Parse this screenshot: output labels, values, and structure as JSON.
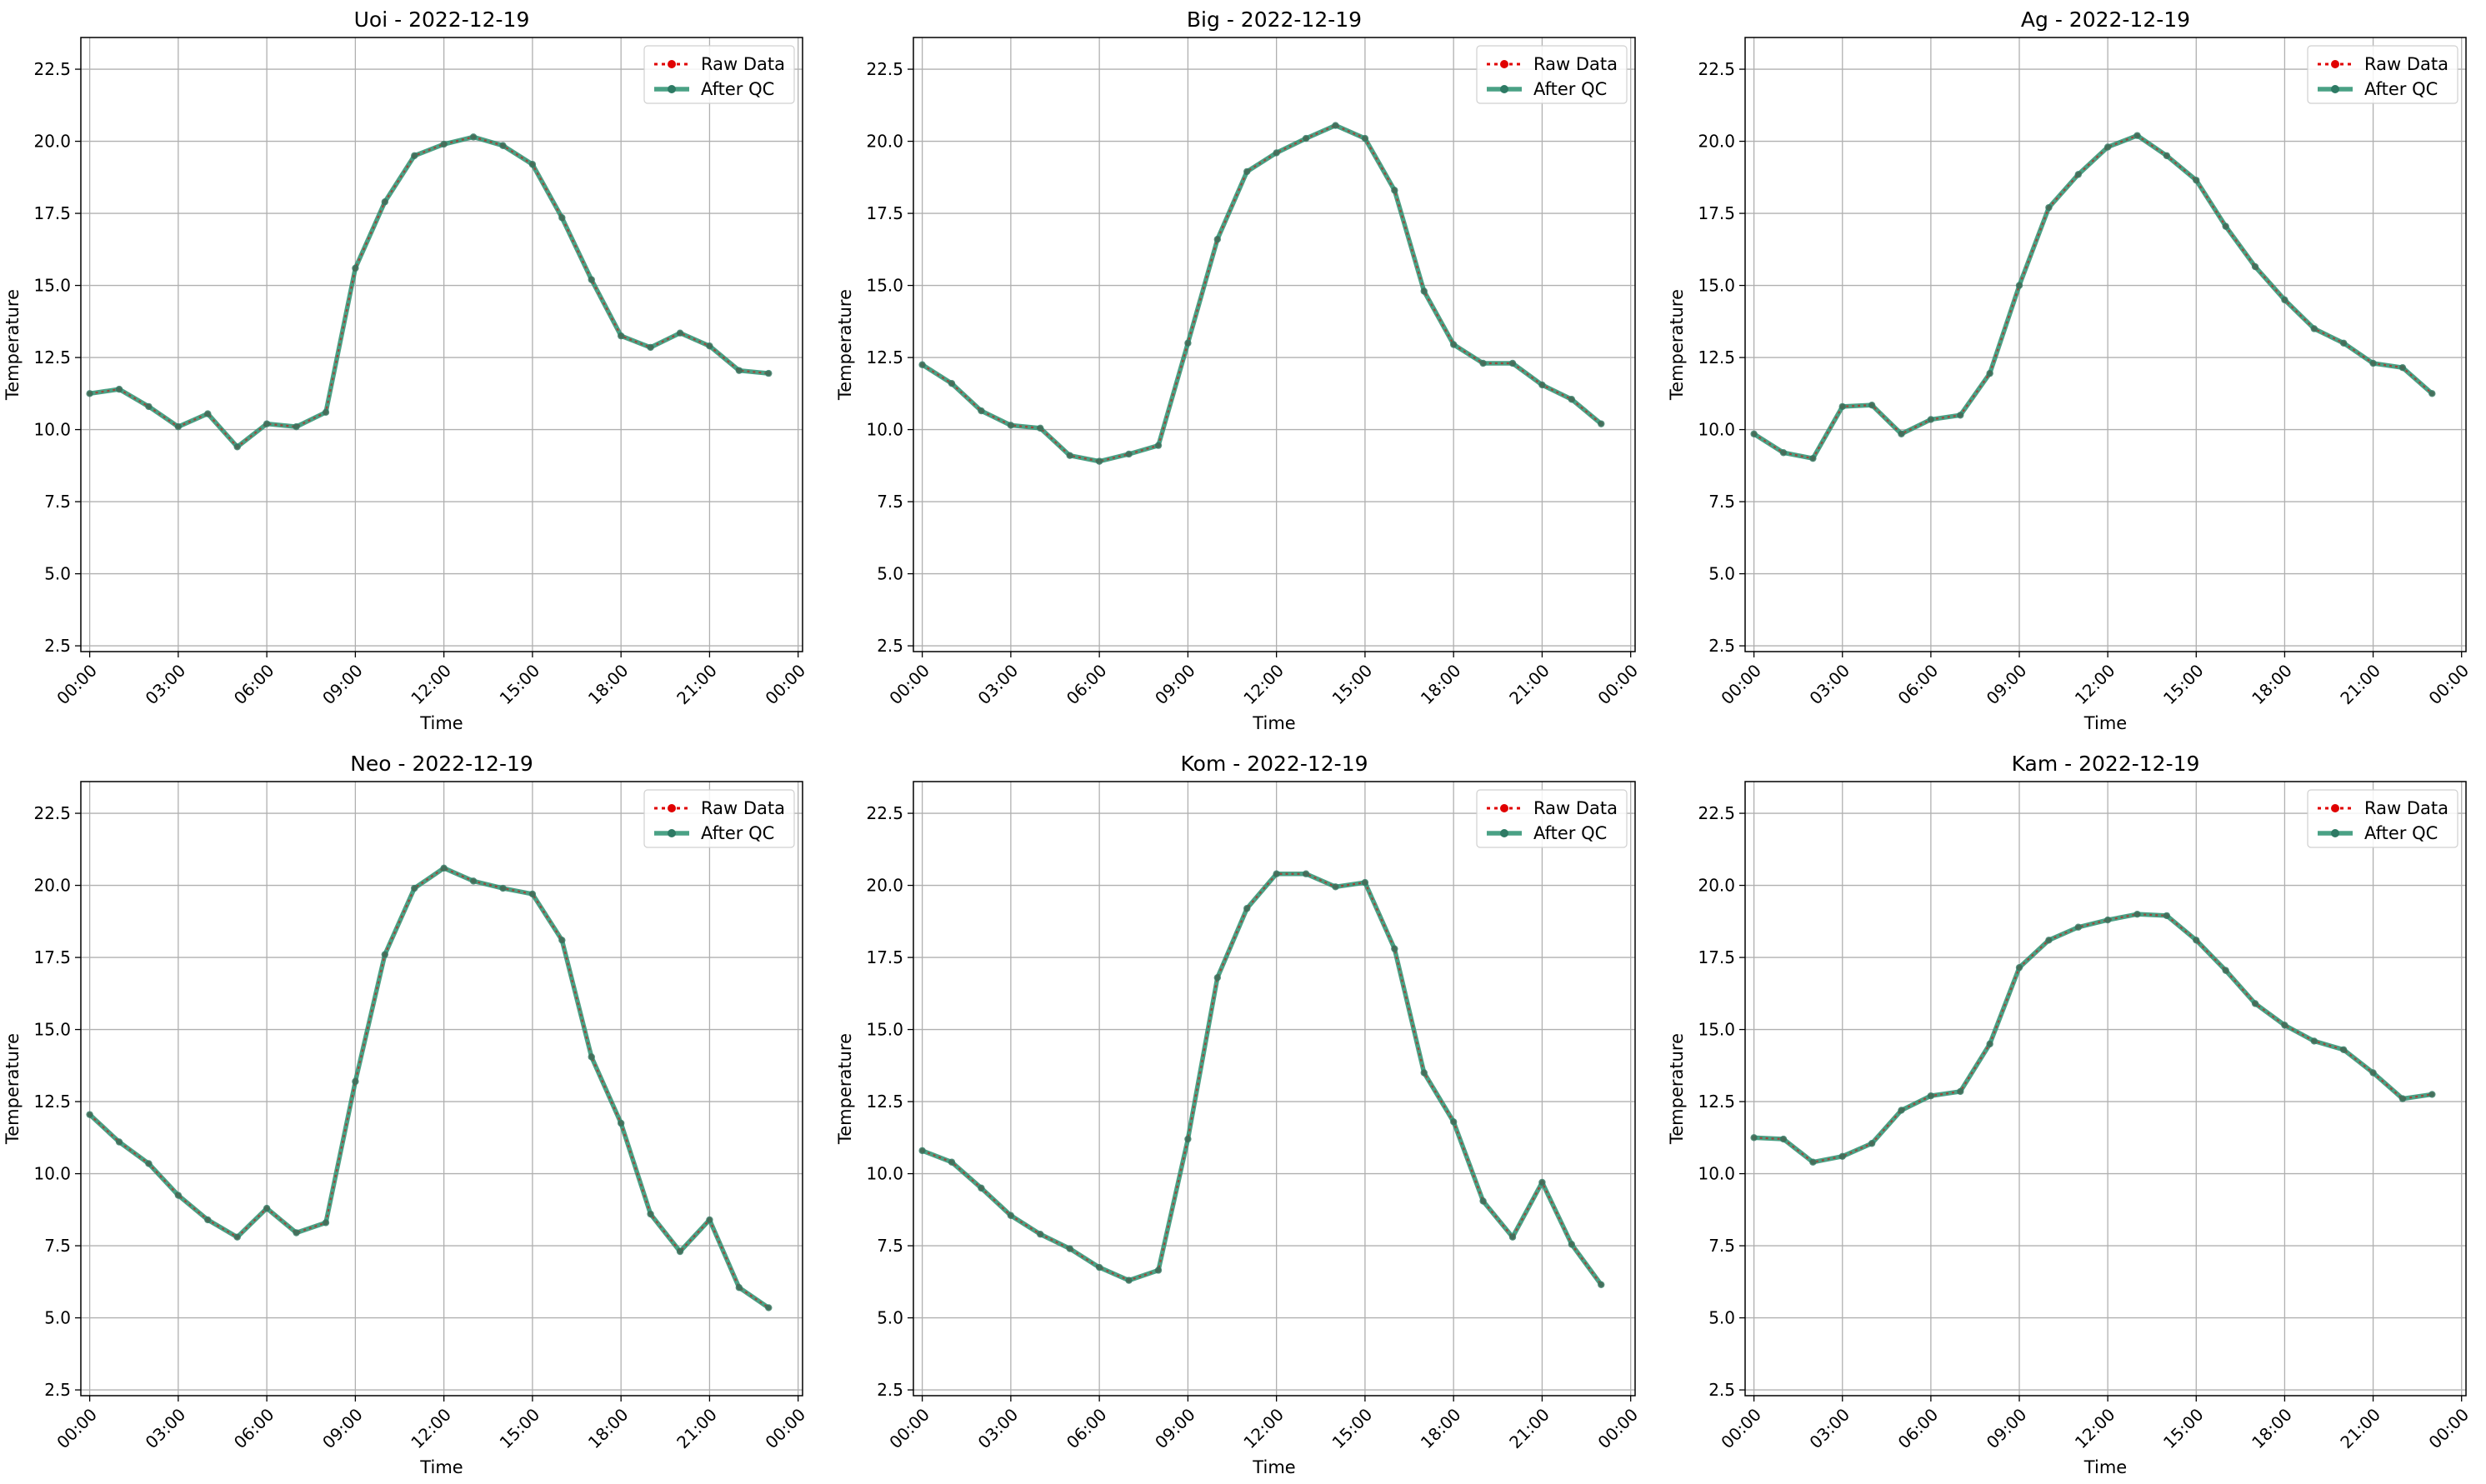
{
  "figure": {
    "x_tick_labels": [
      "00:00",
      "03:00",
      "06:00",
      "09:00",
      "12:00",
      "15:00",
      "18:00",
      "21:00",
      "00:00"
    ],
    "legend": {
      "raw_label": "Raw Data",
      "qc_label": "After QC"
    }
  },
  "colors": {
    "raw": "#e00000",
    "qc": "#2a9070",
    "qc_marker": "#2e7a64",
    "grid": "#b0b0b0"
  },
  "chart_data": [
    {
      "type": "line",
      "title": "Uoi - 2022-12-19",
      "xlabel": "Time",
      "ylabel": "Temperature",
      "xlim_hours": [
        -0.3,
        24.15
      ],
      "ylim": [
        2.3,
        23.6
      ],
      "yticks": [
        2.5,
        5.0,
        7.5,
        10.0,
        12.5,
        15.0,
        17.5,
        20.0,
        22.5
      ],
      "legend_position": "top-right",
      "grid": true,
      "x": [
        "00:00",
        "01:00",
        "02:00",
        "03:00",
        "04:00",
        "05:00",
        "06:00",
        "07:00",
        "08:00",
        "09:00",
        "10:00",
        "11:00",
        "12:00",
        "13:00",
        "14:00",
        "15:00",
        "16:00",
        "17:00",
        "18:00",
        "19:00",
        "20:00",
        "21:00",
        "22:00",
        "23:00"
      ],
      "series": [
        {
          "name": "Raw Data",
          "values": [
            11.25,
            11.4,
            10.8,
            10.1,
            10.55,
            9.4,
            10.2,
            10.1,
            10.6,
            15.6,
            17.9,
            19.5,
            19.9,
            20.15,
            19.85,
            19.2,
            17.35,
            15.2,
            13.25,
            12.85,
            13.35,
            12.9,
            12.05,
            11.95
          ]
        },
        {
          "name": "After QC",
          "values": [
            11.25,
            11.4,
            10.8,
            10.1,
            10.55,
            9.4,
            10.2,
            10.1,
            10.6,
            15.6,
            17.9,
            19.5,
            19.9,
            20.15,
            19.85,
            19.2,
            17.35,
            15.2,
            13.25,
            12.85,
            13.35,
            12.9,
            12.05,
            11.95
          ]
        }
      ]
    },
    {
      "type": "line",
      "title": "Big - 2022-12-19",
      "xlabel": "Time",
      "ylabel": "Temperature",
      "xlim_hours": [
        -0.3,
        24.15
      ],
      "ylim": [
        2.3,
        23.6
      ],
      "yticks": [
        2.5,
        5.0,
        7.5,
        10.0,
        12.5,
        15.0,
        17.5,
        20.0,
        22.5
      ],
      "legend_position": "top-right",
      "grid": true,
      "x": [
        "00:00",
        "01:00",
        "02:00",
        "03:00",
        "04:00",
        "05:00",
        "06:00",
        "07:00",
        "08:00",
        "09:00",
        "10:00",
        "11:00",
        "12:00",
        "13:00",
        "14:00",
        "15:00",
        "16:00",
        "17:00",
        "18:00",
        "19:00",
        "20:00",
        "21:00",
        "22:00",
        "23:00"
      ],
      "series": [
        {
          "name": "Raw Data",
          "values": [
            12.25,
            11.6,
            10.65,
            10.15,
            10.05,
            9.1,
            8.9,
            9.15,
            9.45,
            13.0,
            16.6,
            18.95,
            19.6,
            20.1,
            20.55,
            20.1,
            18.3,
            14.8,
            12.95,
            12.3,
            12.3,
            11.55,
            11.05,
            10.2
          ]
        },
        {
          "name": "After QC",
          "values": [
            12.25,
            11.6,
            10.65,
            10.15,
            10.05,
            9.1,
            8.9,
            9.15,
            9.45,
            13.0,
            16.6,
            18.95,
            19.6,
            20.1,
            20.55,
            20.1,
            18.3,
            14.8,
            12.95,
            12.3,
            12.3,
            11.55,
            11.05,
            10.2
          ]
        }
      ]
    },
    {
      "type": "line",
      "title": "Ag - 2022-12-19",
      "xlabel": "Time",
      "ylabel": "Temperature",
      "xlim_hours": [
        -0.3,
        24.15
      ],
      "ylim": [
        2.3,
        23.6
      ],
      "yticks": [
        2.5,
        5.0,
        7.5,
        10.0,
        12.5,
        15.0,
        17.5,
        20.0,
        22.5
      ],
      "legend_position": "top-right",
      "grid": true,
      "x": [
        "00:00",
        "01:00",
        "02:00",
        "03:00",
        "04:00",
        "05:00",
        "06:00",
        "07:00",
        "08:00",
        "09:00",
        "10:00",
        "11:00",
        "12:00",
        "13:00",
        "14:00",
        "15:00",
        "16:00",
        "17:00",
        "18:00",
        "19:00",
        "20:00",
        "21:00",
        "22:00",
        "23:00"
      ],
      "series": [
        {
          "name": "Raw Data",
          "values": [
            9.85,
            9.2,
            9.0,
            10.8,
            10.85,
            9.85,
            10.35,
            10.5,
            11.95,
            15.0,
            17.7,
            18.85,
            19.8,
            20.2,
            19.5,
            18.65,
            17.05,
            15.65,
            14.5,
            13.5,
            13.0,
            12.3,
            12.15,
            11.25
          ]
        },
        {
          "name": "After QC",
          "values": [
            9.85,
            9.2,
            9.0,
            10.8,
            10.85,
            9.85,
            10.35,
            10.5,
            11.95,
            15.0,
            17.7,
            18.85,
            19.8,
            20.2,
            19.5,
            18.65,
            17.05,
            15.65,
            14.5,
            13.5,
            13.0,
            12.3,
            12.15,
            11.25
          ]
        }
      ]
    },
    {
      "type": "line",
      "title": "Neo - 2022-12-19",
      "xlabel": "Time",
      "ylabel": "Temperature",
      "xlim_hours": [
        -0.3,
        24.15
      ],
      "ylim": [
        2.3,
        23.6
      ],
      "yticks": [
        2.5,
        5.0,
        7.5,
        10.0,
        12.5,
        15.0,
        17.5,
        20.0,
        22.5
      ],
      "legend_position": "top-right",
      "grid": true,
      "x": [
        "00:00",
        "01:00",
        "02:00",
        "03:00",
        "04:00",
        "05:00",
        "06:00",
        "07:00",
        "08:00",
        "09:00",
        "10:00",
        "11:00",
        "12:00",
        "13:00",
        "14:00",
        "15:00",
        "16:00",
        "17:00",
        "18:00",
        "19:00",
        "20:00",
        "21:00",
        "22:00",
        "23:00"
      ],
      "series": [
        {
          "name": "Raw Data",
          "values": [
            12.05,
            11.1,
            10.35,
            9.25,
            8.4,
            7.8,
            8.8,
            7.95,
            8.3,
            13.2,
            17.6,
            19.9,
            20.6,
            20.15,
            19.9,
            19.7,
            18.1,
            14.05,
            11.75,
            8.6,
            7.3,
            8.4,
            6.05,
            5.35
          ]
        },
        {
          "name": "After QC",
          "values": [
            12.05,
            11.1,
            10.35,
            9.25,
            8.4,
            7.8,
            8.8,
            7.95,
            8.3,
            13.2,
            17.6,
            19.9,
            20.6,
            20.15,
            19.9,
            19.7,
            18.1,
            14.05,
            11.75,
            8.6,
            7.3,
            8.4,
            6.05,
            5.35
          ]
        }
      ]
    },
    {
      "type": "line",
      "title": "Kom - 2022-12-19",
      "xlabel": "Time",
      "ylabel": "Temperature",
      "xlim_hours": [
        -0.3,
        24.15
      ],
      "ylim": [
        2.3,
        23.6
      ],
      "yticks": [
        2.5,
        5.0,
        7.5,
        10.0,
        12.5,
        15.0,
        17.5,
        20.0,
        22.5
      ],
      "legend_position": "top-right",
      "grid": true,
      "x": [
        "00:00",
        "01:00",
        "02:00",
        "03:00",
        "04:00",
        "05:00",
        "06:00",
        "07:00",
        "08:00",
        "09:00",
        "10:00",
        "11:00",
        "12:00",
        "13:00",
        "14:00",
        "15:00",
        "16:00",
        "17:00",
        "18:00",
        "19:00",
        "20:00",
        "21:00",
        "22:00",
        "23:00"
      ],
      "series": [
        {
          "name": "Raw Data",
          "values": [
            10.8,
            10.4,
            9.5,
            8.55,
            7.9,
            7.4,
            6.75,
            6.3,
            6.65,
            11.2,
            16.8,
            19.2,
            20.4,
            20.4,
            19.95,
            20.1,
            17.8,
            13.5,
            11.8,
            9.05,
            7.8,
            9.7,
            7.55,
            6.15
          ]
        },
        {
          "name": "After QC",
          "values": [
            10.8,
            10.4,
            9.5,
            8.55,
            7.9,
            7.4,
            6.75,
            6.3,
            6.65,
            11.2,
            16.8,
            19.2,
            20.4,
            20.4,
            19.95,
            20.1,
            17.8,
            13.5,
            11.8,
            9.05,
            7.8,
            9.7,
            7.55,
            6.15
          ]
        }
      ]
    },
    {
      "type": "line",
      "title": "Kam - 2022-12-19",
      "xlabel": "Time",
      "ylabel": "Temperature",
      "xlim_hours": [
        -0.3,
        24.15
      ],
      "ylim": [
        2.3,
        23.6
      ],
      "yticks": [
        2.5,
        5.0,
        7.5,
        10.0,
        12.5,
        15.0,
        17.5,
        20.0,
        22.5
      ],
      "legend_position": "top-right",
      "grid": true,
      "x": [
        "00:00",
        "01:00",
        "02:00",
        "03:00",
        "04:00",
        "05:00",
        "06:00",
        "07:00",
        "08:00",
        "09:00",
        "10:00",
        "11:00",
        "12:00",
        "13:00",
        "14:00",
        "15:00",
        "16:00",
        "17:00",
        "18:00",
        "19:00",
        "20:00",
        "21:00",
        "22:00",
        "23:00"
      ],
      "series": [
        {
          "name": "Raw Data",
          "values": [
            11.25,
            11.2,
            10.4,
            10.6,
            11.05,
            12.2,
            12.7,
            12.85,
            14.5,
            17.15,
            18.1,
            18.55,
            18.8,
            19.0,
            18.95,
            18.1,
            17.05,
            15.9,
            15.15,
            14.6,
            14.3,
            13.5,
            12.6,
            12.75
          ]
        },
        {
          "name": "After QC",
          "values": [
            11.25,
            11.2,
            10.4,
            10.6,
            11.05,
            12.2,
            12.7,
            12.85,
            14.5,
            17.15,
            18.1,
            18.55,
            18.8,
            19.0,
            18.95,
            18.1,
            17.05,
            15.9,
            15.15,
            14.6,
            14.3,
            13.5,
            12.6,
            12.75
          ]
        }
      ]
    }
  ]
}
